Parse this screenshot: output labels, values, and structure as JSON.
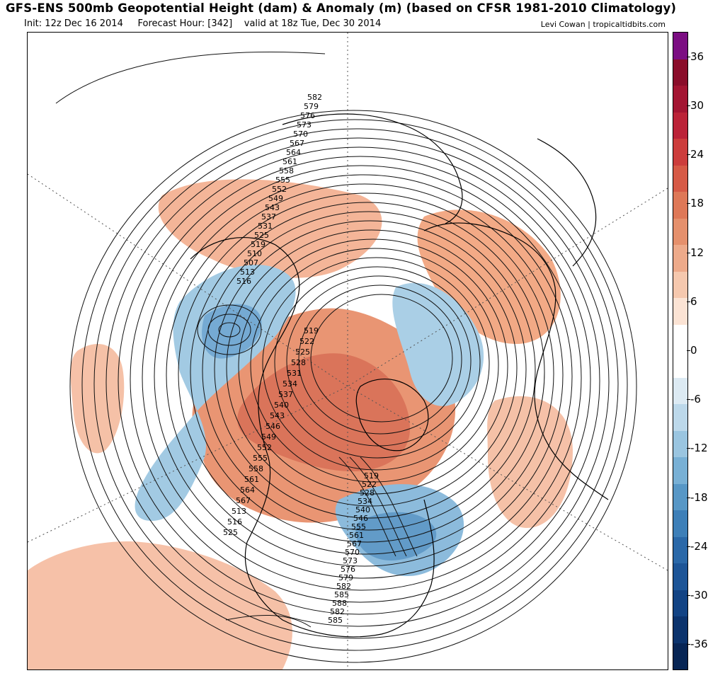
{
  "header": {
    "title": "GFS-ENS 500mb Geopotential Height (dam) & Anomaly (m) (based on CFSR 1981-2010 Climatology)",
    "init": "Init: 12z Dec 16 2014",
    "forecast_hour": "Forecast Hour: [342]",
    "valid": "valid at 18z Tue, Dec 30 2014",
    "credit": "Levi Cowan | tropicaltidbits.com"
  },
  "colorbar": {
    "labels": [
      "36",
      "30",
      "24",
      "18",
      "12",
      "6",
      "0",
      "-6",
      "-12",
      "-18",
      "-24",
      "-30",
      "-36"
    ],
    "colors": [
      "#7b0d82",
      "#8a0d2a",
      "#a31532",
      "#bb2338",
      "#cc3d3c",
      "#d65a46",
      "#de7857",
      "#e5906c",
      "#edaa8a",
      "#f5c8ae",
      "#fbe3d4",
      "#ffffff",
      "#ffffff",
      "#dceaf3",
      "#bcd8ea",
      "#9ac5e0",
      "#78b0d5",
      "#5797c6",
      "#3d7fb8",
      "#2a68a8",
      "#1d5597",
      "#124384",
      "#0b336d",
      "#072555"
    ]
  },
  "contours": {
    "north_labels": [
      "582",
      "579",
      "576",
      "573",
      "570",
      "567",
      "564",
      "561",
      "558",
      "555",
      "552",
      "549",
      "543",
      "537",
      "531",
      "525",
      "519",
      "510",
      "507",
      "513",
      "516"
    ],
    "central_labels": [
      "519",
      "522",
      "525",
      "528",
      "531",
      "534",
      "537",
      "540",
      "543",
      "546",
      "549",
      "552",
      "555",
      "558",
      "561",
      "564",
      "567",
      "513",
      "516",
      "525"
    ],
    "east_labels": [
      "519",
      "522",
      "528",
      "534",
      "540",
      "546",
      "555",
      "561",
      "567",
      "570",
      "573",
      "576",
      "579",
      "582",
      "585",
      "588",
      "582",
      "585"
    ]
  }
}
